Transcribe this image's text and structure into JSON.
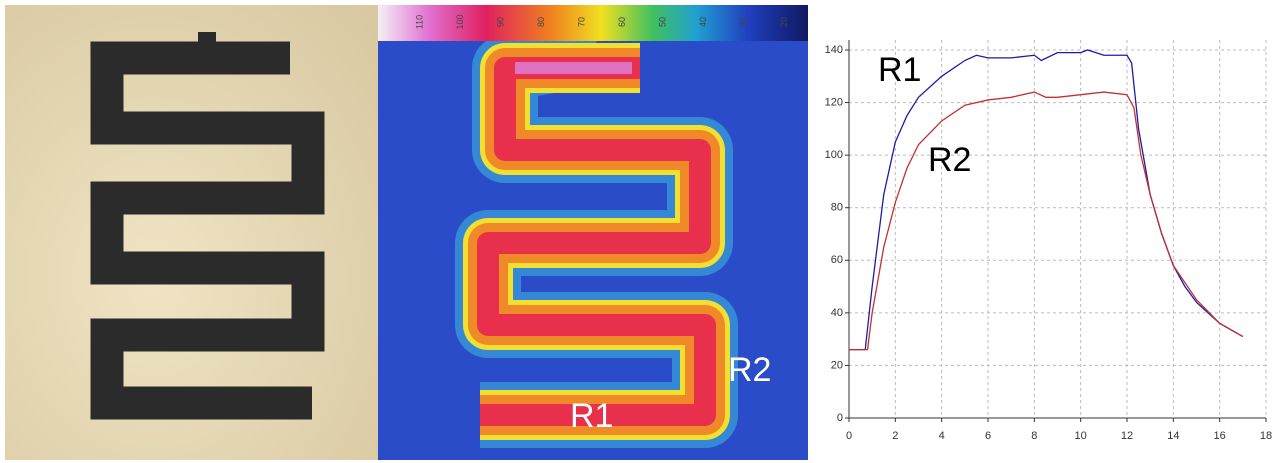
{
  "thermal": {
    "colorbar_ticks": [
      110,
      100,
      90,
      80,
      70,
      60,
      50,
      40,
      30,
      20
    ],
    "labels": [
      "R1",
      "R2"
    ]
  },
  "chart_data": {
    "type": "line",
    "series": [
      {
        "name": "R1",
        "color": "#1c1ca8",
        "x": [
          0,
          0.7,
          1,
          1.5,
          2,
          2.5,
          3,
          4,
          5,
          5.5,
          6,
          7,
          8,
          8.3,
          9,
          10,
          10.3,
          11,
          12,
          12.2,
          12.5,
          13,
          13.5,
          14,
          14.5,
          15,
          16,
          17
        ],
        "values": [
          26,
          26,
          50,
          85,
          105,
          115,
          122,
          130,
          136,
          138,
          137,
          137,
          138,
          136,
          139,
          139,
          140,
          138,
          138,
          135,
          110,
          85,
          70,
          58,
          50,
          44,
          36,
          31
        ]
      },
      {
        "name": "R2",
        "color": "#c43030",
        "x": [
          0,
          0.8,
          1,
          1.5,
          2,
          2.5,
          3,
          4,
          5,
          6,
          7,
          8,
          8.5,
          9,
          10,
          11,
          12,
          12.3,
          12.6,
          13,
          13.5,
          14,
          15,
          16,
          17
        ],
        "values": [
          26,
          26,
          40,
          65,
          82,
          95,
          104,
          113,
          119,
          121,
          122,
          124,
          122,
          122,
          123,
          124,
          123,
          118,
          100,
          85,
          70,
          58,
          45,
          36,
          31
        ]
      }
    ],
    "xlim": [
      0,
      18
    ],
    "xticks": [
      0,
      2,
      4,
      6,
      8,
      10,
      12,
      14,
      16,
      18
    ],
    "ylim": [
      0,
      140
    ],
    "yticks": [
      0,
      20,
      40,
      60,
      80,
      100,
      120,
      140
    ],
    "grid": true
  }
}
